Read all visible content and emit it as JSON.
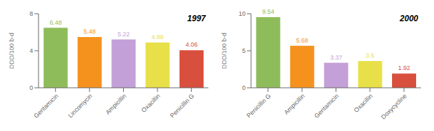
{
  "chart_data": [
    {
      "type": "bar",
      "title": "1997",
      "categories": [
        "Gentamicin",
        "Lincomycin",
        "Ampicillin",
        "Oxacillin",
        "Penicillin G"
      ],
      "values": [
        6.48,
        5.48,
        5.22,
        4.88,
        4.06
      ],
      "colors": [
        "#8fbc5a",
        "#f5921e",
        "#c3a0d8",
        "#e8e048",
        "#d94f3d"
      ],
      "ylim": [
        0,
        8
      ],
      "yticks": [
        0,
        4,
        8
      ],
      "ylabel": "DDD/100 b-d",
      "data_labels": true,
      "grid": false
    },
    {
      "type": "bar",
      "title": "2000",
      "categories": [
        "Penicillin G",
        "Ampicillin",
        "Gentamicin",
        "Oxacillin",
        "Doxycycline"
      ],
      "values": [
        9.54,
        5.68,
        3.37,
        3.6,
        1.92
      ],
      "colors": [
        "#8fbc5a",
        "#f5921e",
        "#c3a0d8",
        "#e8e048",
        "#d94f3d"
      ],
      "ylim": [
        0,
        10
      ],
      "yticks": [
        0,
        5,
        10
      ],
      "ylabel": "DDD/100 b-d",
      "data_labels": true,
      "grid": false
    }
  ]
}
